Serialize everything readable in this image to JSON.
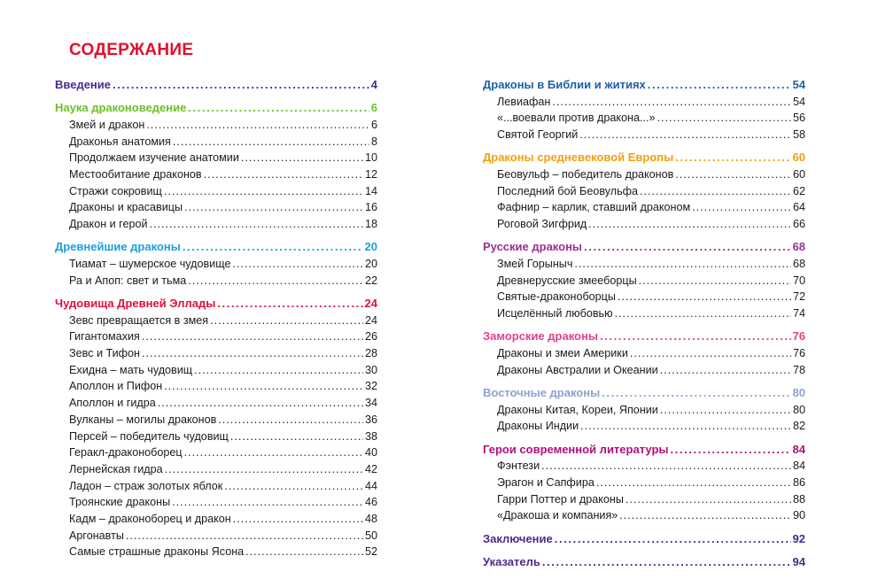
{
  "title": "СОДЕРЖАНИЕ",
  "columns": [
    [
      {
        "label": "Введение",
        "page": "4",
        "color": "#4b2a8a",
        "items": []
      },
      {
        "label": "Наука драконоведение",
        "page": "6",
        "color": "#6cbf2a",
        "items": [
          {
            "label": "Змей и дракон",
            "page": "6"
          },
          {
            "label": "Драконья анатомия",
            "page": "8"
          },
          {
            "label": "Продолжаем изучение анатомии",
            "page": "10"
          },
          {
            "label": "Местообитание драконов",
            "page": "12"
          },
          {
            "label": "Стражи сокровищ",
            "page": "14"
          },
          {
            "label": "Драконы и красавицы",
            "page": "16"
          },
          {
            "label": "Дракон и герой",
            "page": "18"
          }
        ]
      },
      {
        "label": "Древнейшие драконы",
        "page": "20",
        "color": "#1aa0e0",
        "items": [
          {
            "label": "Тиамат – шумерское чудовище",
            "page": "20"
          },
          {
            "label": "Ра и Апоп: свет и тьма",
            "page": "22"
          }
        ]
      },
      {
        "label": "Чудовища Древней Эллады",
        "page": "24",
        "color": "#e0103a",
        "items": [
          {
            "label": "Зевс превращается в змея",
            "page": "24"
          },
          {
            "label": "Гигантомахия",
            "page": "26"
          },
          {
            "label": "Зевс и Тифон",
            "page": "28"
          },
          {
            "label": "Ехидна – мать чудовищ",
            "page": "30"
          },
          {
            "label": "Аполлон и Пифон",
            "page": "32"
          },
          {
            "label": "Аполлон и гидра",
            "page": "34"
          },
          {
            "label": "Вулканы – могилы драконов",
            "page": "36"
          },
          {
            "label": "Персей – победитель чудовищ",
            "page": "38"
          },
          {
            "label": "Геракл-драконоборец",
            "page": "40"
          },
          {
            "label": "Лернейская гидра",
            "page": "42"
          },
          {
            "label": "Ладон – страж золотых яблок",
            "page": "44"
          },
          {
            "label": "Троянские драконы",
            "page": "46"
          },
          {
            "label": "Кадм – драконоборец и дракон",
            "page": "48"
          },
          {
            "label": "Аргонавты",
            "page": "50"
          },
          {
            "label": "Самые страшные драконы Ясона",
            "page": "52"
          }
        ]
      }
    ],
    [
      {
        "label": "Драконы в Библии и житиях",
        "page": "54",
        "color": "#1f5fa8",
        "items": [
          {
            "label": "Левиафан",
            "page": "54"
          },
          {
            "label": "«...воевали против дракона...»",
            "page": "56"
          },
          {
            "label": "Святой Георгий",
            "page": "58"
          }
        ]
      },
      {
        "label": "Драконы средневековой Европы",
        "page": "60",
        "color": "#f0a010",
        "items": [
          {
            "label": "Беовульф – победитель драконов",
            "page": "60"
          },
          {
            "label": "Последний бой Беовульфа",
            "page": "62"
          },
          {
            "label": "Фафнир – карлик, ставший драконом",
            "page": "64"
          },
          {
            "label": "Роговой Зигфрид",
            "page": "66"
          }
        ]
      },
      {
        "label": "Русские драконы",
        "page": "68",
        "color": "#9b2f8f",
        "items": [
          {
            "label": "Змей Горыныч",
            "page": "68"
          },
          {
            "label": "Древнерусские змееборцы",
            "page": "70"
          },
          {
            "label": "Святые-драконоборцы",
            "page": "72"
          },
          {
            "label": "Исцелённый любовью",
            "page": "74"
          }
        ]
      },
      {
        "label": "Заморские драконы",
        "page": "76",
        "color": "#e04090",
        "items": [
          {
            "label": "Драконы и змеи Америки",
            "page": "76"
          },
          {
            "label": "Драконы Австралии и Океании",
            "page": "78"
          }
        ]
      },
      {
        "label": "Восточные драконы",
        "page": "80",
        "color": "#8ea2d0",
        "items": [
          {
            "label": "Драконы Китая, Кореи, Японии",
            "page": "80"
          },
          {
            "label": "Драконы Индии",
            "page": "82"
          }
        ]
      },
      {
        "label": "Герои современной литературы",
        "page": "84",
        "color": "#b0107a",
        "items": [
          {
            "label": "Фэнтези",
            "page": "84"
          },
          {
            "label": "Эрагон и Сапфира",
            "page": "86"
          },
          {
            "label": "Гарри Поттер и драконы",
            "page": "88"
          },
          {
            "label": "«Дракоша и компания»",
            "page": "90"
          }
        ]
      },
      {
        "label": "Заключение",
        "page": "92",
        "color": "#4b2a8a",
        "items": []
      },
      {
        "label": "Указатель",
        "page": "94",
        "color": "#4b2a8a",
        "items": []
      }
    ]
  ]
}
